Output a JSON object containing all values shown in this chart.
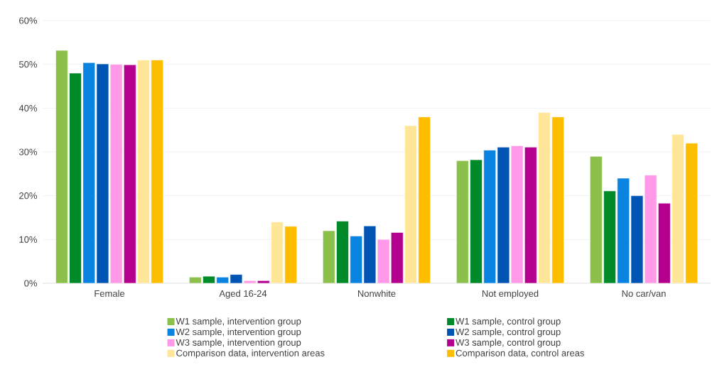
{
  "chart_data": {
    "type": "bar",
    "categories": [
      "Female",
      "Aged 16-24",
      "Nonwhite",
      "Not employed",
      "No car/van"
    ],
    "series": [
      {
        "name": "W1 sample, intervention group",
        "color": "#8bc14b",
        "values": [
          53.2,
          1.4,
          12,
          28,
          29
        ]
      },
      {
        "name": "W1 sample, control group",
        "color": "#008a2a",
        "values": [
          48,
          1.6,
          14.2,
          28.2,
          21.1
        ]
      },
      {
        "name": "W2 sample, intervention group",
        "color": "#0a84e0",
        "values": [
          50.4,
          1.4,
          10.8,
          30.4,
          24
        ]
      },
      {
        "name": "W2 sample, control group",
        "color": "#0054b4",
        "values": [
          50.1,
          2.0,
          13.1,
          31.1,
          20
        ]
      },
      {
        "name": "W3 sample, intervention group",
        "color": "#ff99e8",
        "values": [
          50,
          0.6,
          10,
          31.4,
          24.7
        ]
      },
      {
        "name": "W3 sample, control group",
        "color": "#b5008f",
        "values": [
          49.9,
          0.6,
          11.6,
          31.1,
          18.3
        ]
      },
      {
        "name": "Comparison data, intervention areas",
        "color": "#ffe699",
        "values": [
          51,
          14,
          36,
          39,
          34
        ]
      },
      {
        "name": "Comparison data, control areas",
        "color": "#ffbd00",
        "values": [
          51,
          13,
          38,
          38,
          32
        ]
      }
    ],
    "ylim": [
      0,
      60
    ],
    "yticks": [
      {
        "value": 0,
        "label": "0%"
      },
      {
        "value": 10,
        "label": "10%"
      },
      {
        "value": 20,
        "label": "20%"
      },
      {
        "value": 30,
        "label": "30%"
      },
      {
        "value": 40,
        "label": "40%"
      },
      {
        "value": 50,
        "label": "50%"
      },
      {
        "value": 60,
        "label": "60%"
      }
    ],
    "grid": "y",
    "legend": "bottom"
  }
}
